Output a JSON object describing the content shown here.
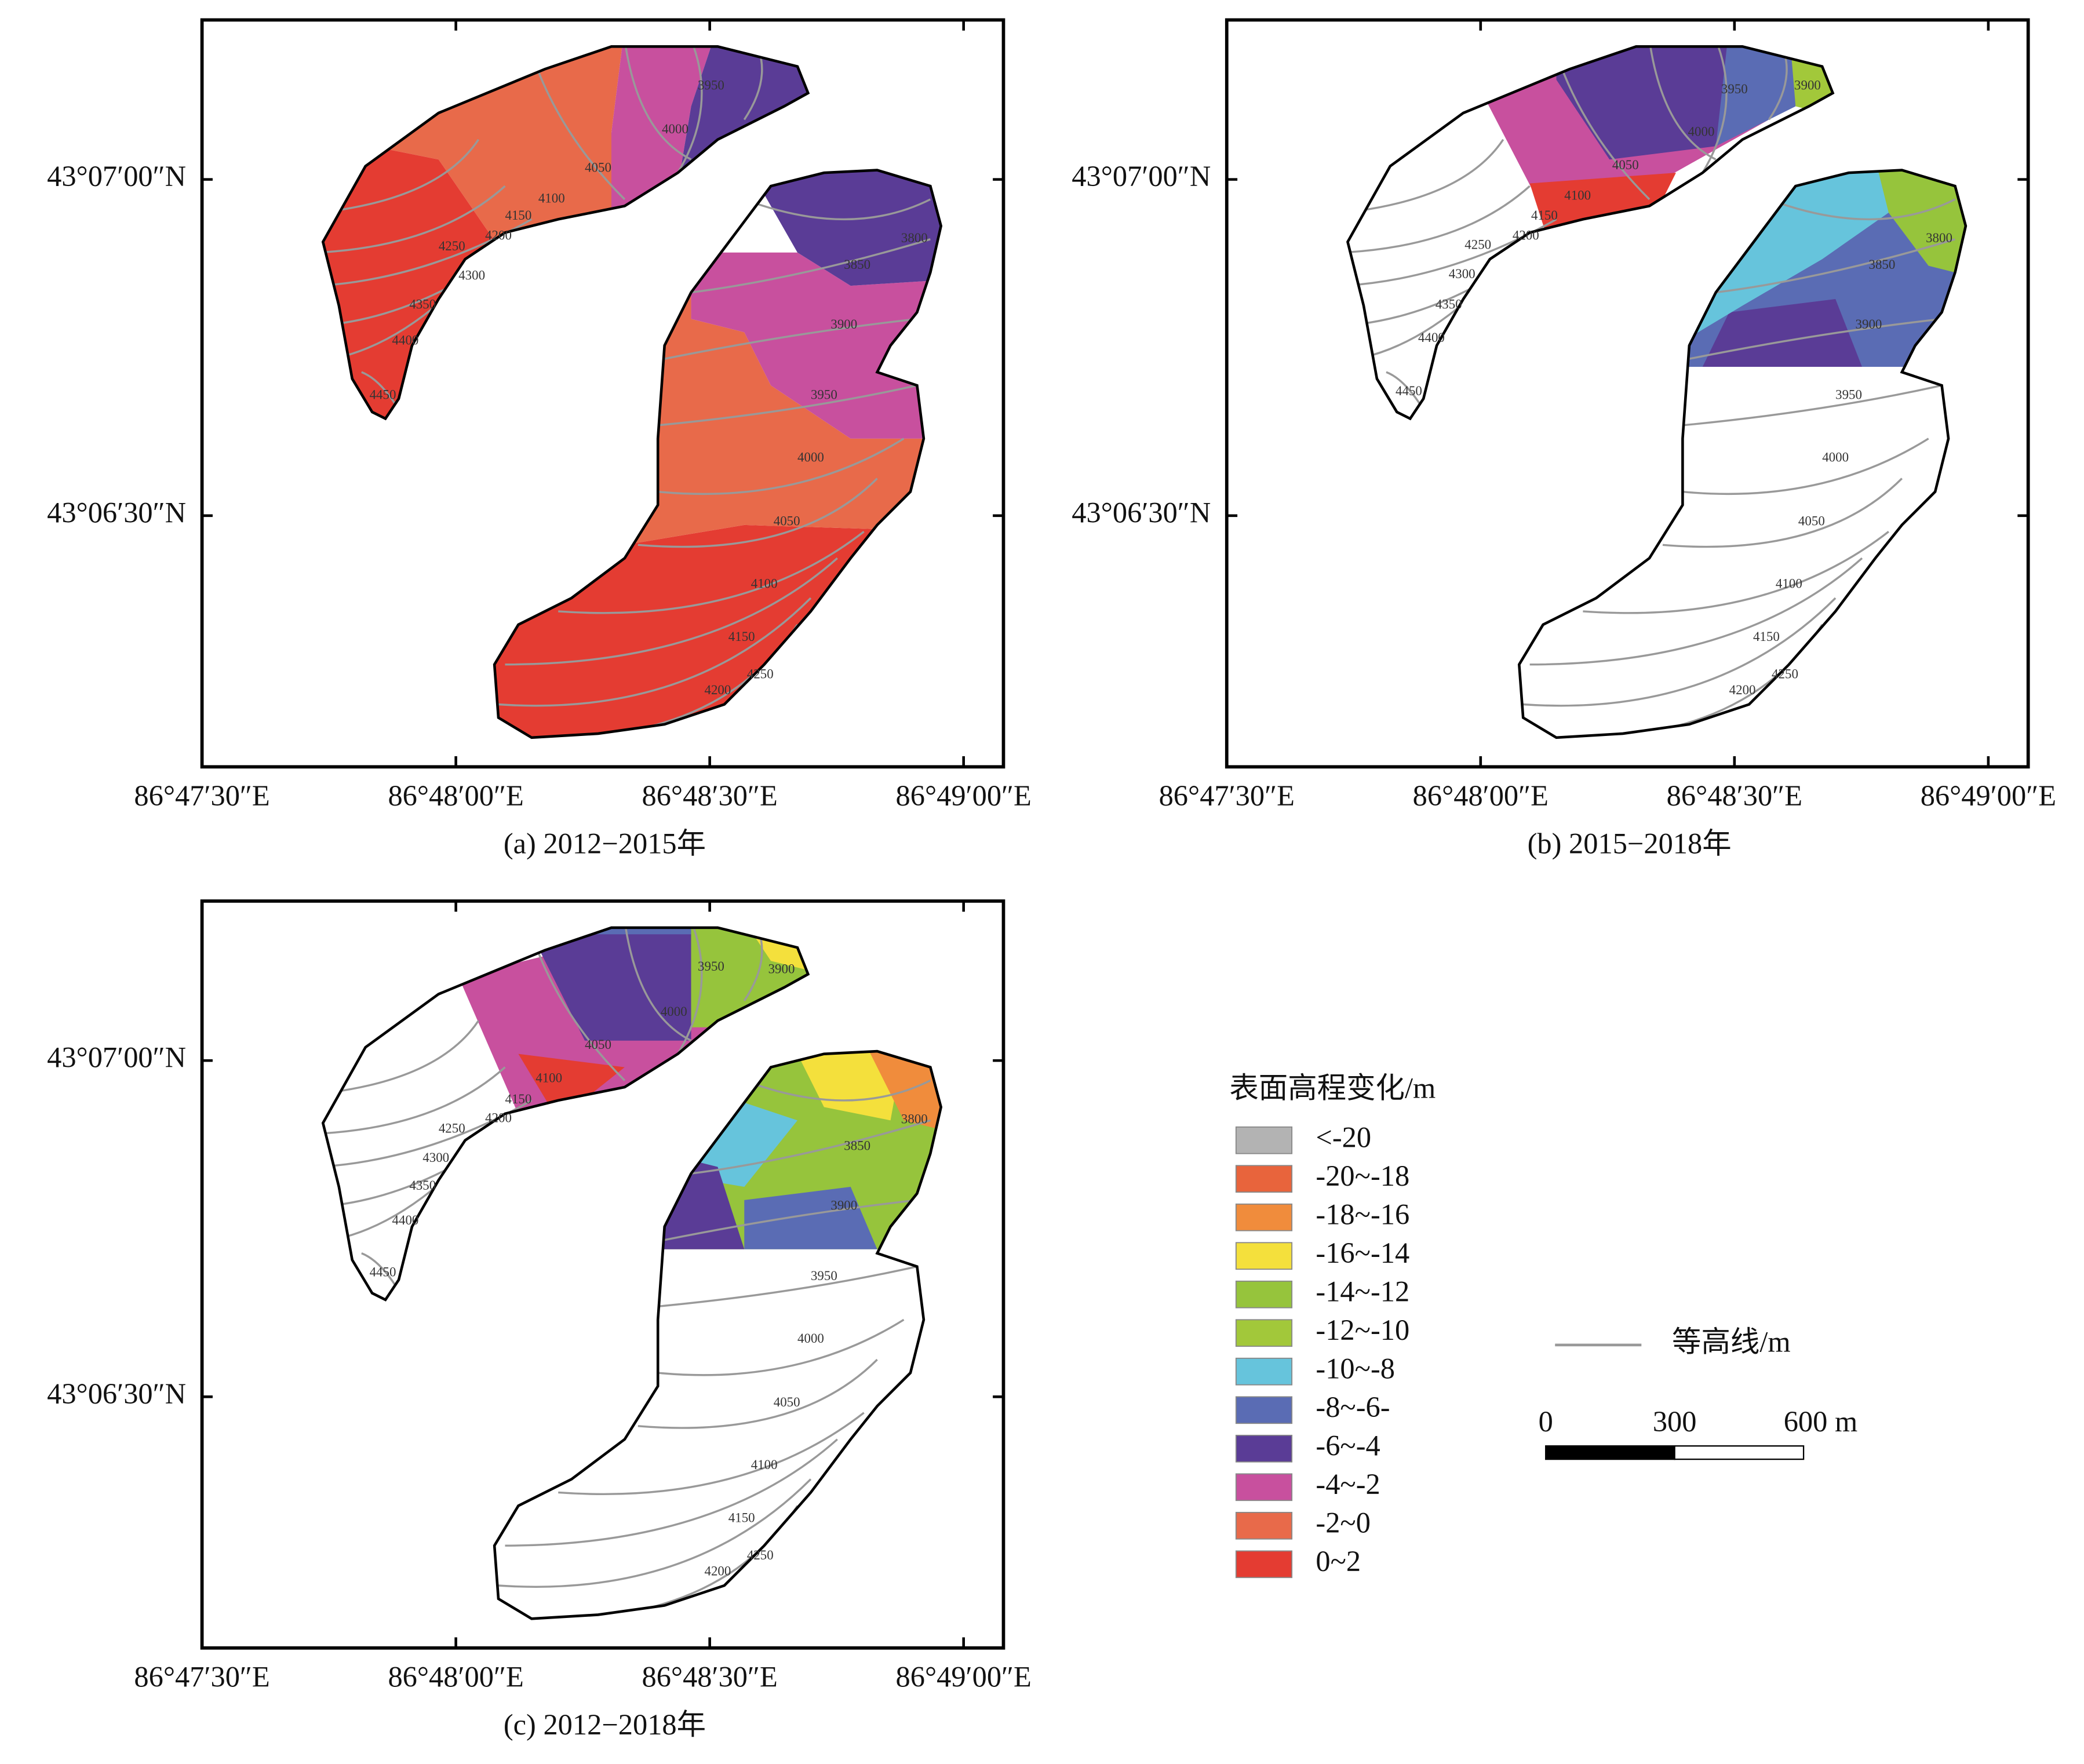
{
  "panels": [
    {
      "caption": "(a) 2012−2015年",
      "x_ticks": [
        "86°47′30″E",
        "86°48′00″E",
        "86°48′30″E",
        "86°49′00″E"
      ],
      "y_ticks": [
        "43°07′00″N",
        "43°06′30″N"
      ],
      "contours_north": [
        "3950",
        "4000",
        "4050",
        "4100",
        "4150",
        "4200",
        "4250",
        "4300",
        "4350",
        "4400",
        "4450"
      ],
      "contours_south": [
        "3800",
        "3850",
        "3900",
        "3950",
        "4000",
        "4050",
        "4100",
        "4150",
        "4200",
        "4250"
      ]
    },
    {
      "caption": "(b) 2015−2018年",
      "x_ticks": [
        "86°47′30″E",
        "86°48′00″E",
        "86°48′30″E",
        "86°49′00″E"
      ],
      "y_ticks": [
        "43°07′00″N",
        "43°06′30″N"
      ],
      "contours_north": [
        "3900",
        "3950",
        "4000",
        "4050",
        "4100",
        "4150",
        "4200",
        "4250",
        "4300",
        "4350",
        "4400",
        "4450"
      ],
      "contours_south": [
        "3800",
        "3850",
        "3900",
        "3950",
        "4000",
        "4050",
        "4100",
        "4150",
        "4200",
        "4250"
      ]
    },
    {
      "caption": "(c) 2012−2018年",
      "x_ticks": [
        "86°47′30″E",
        "86°48′00″E",
        "86°48′30″E",
        "86°49′00″E"
      ],
      "y_ticks": [
        "43°07′00″N",
        "43°06′30″N"
      ],
      "contours_north": [
        "3900",
        "3950",
        "4000",
        "4050",
        "4100",
        "4150",
        "4200",
        "4250",
        "4300",
        "4350",
        "4400",
        "4450"
      ],
      "contours_south": [
        "3800",
        "3850",
        "3900",
        "3950",
        "4000",
        "4050",
        "4100",
        "4150",
        "4200",
        "4250"
      ]
    }
  ],
  "legend": {
    "title": "表面高程变化/m",
    "items": [
      {
        "label": "<-20",
        "color": "#b3b3b3"
      },
      {
        "label": "-20~-18",
        "color": "#e8643c"
      },
      {
        "label": "-18~-16",
        "color": "#f08c3c"
      },
      {
        "label": "-16~-14",
        "color": "#f4e03c"
      },
      {
        "label": "-14~-12",
        "color": "#96c43c"
      },
      {
        "label": "-12~-10",
        "color": "#a2c83a"
      },
      {
        "label": "-10~-8",
        "color": "#66c4dc"
      },
      {
        "label": "-8~-6-",
        "color": "#5a6cb4"
      },
      {
        "label": "-6~-4",
        "color": "#5a3c96"
      },
      {
        "label": "-4~-2",
        "color": "#c8509e"
      },
      {
        "label": "-2~0",
        "color": "#e86a4a"
      },
      {
        "label": "0~2",
        "color": "#e43c32"
      }
    ]
  },
  "contour_legend": "等高线/m",
  "scale_bar": {
    "labels": [
      "0",
      "300",
      "600 m"
    ]
  }
}
